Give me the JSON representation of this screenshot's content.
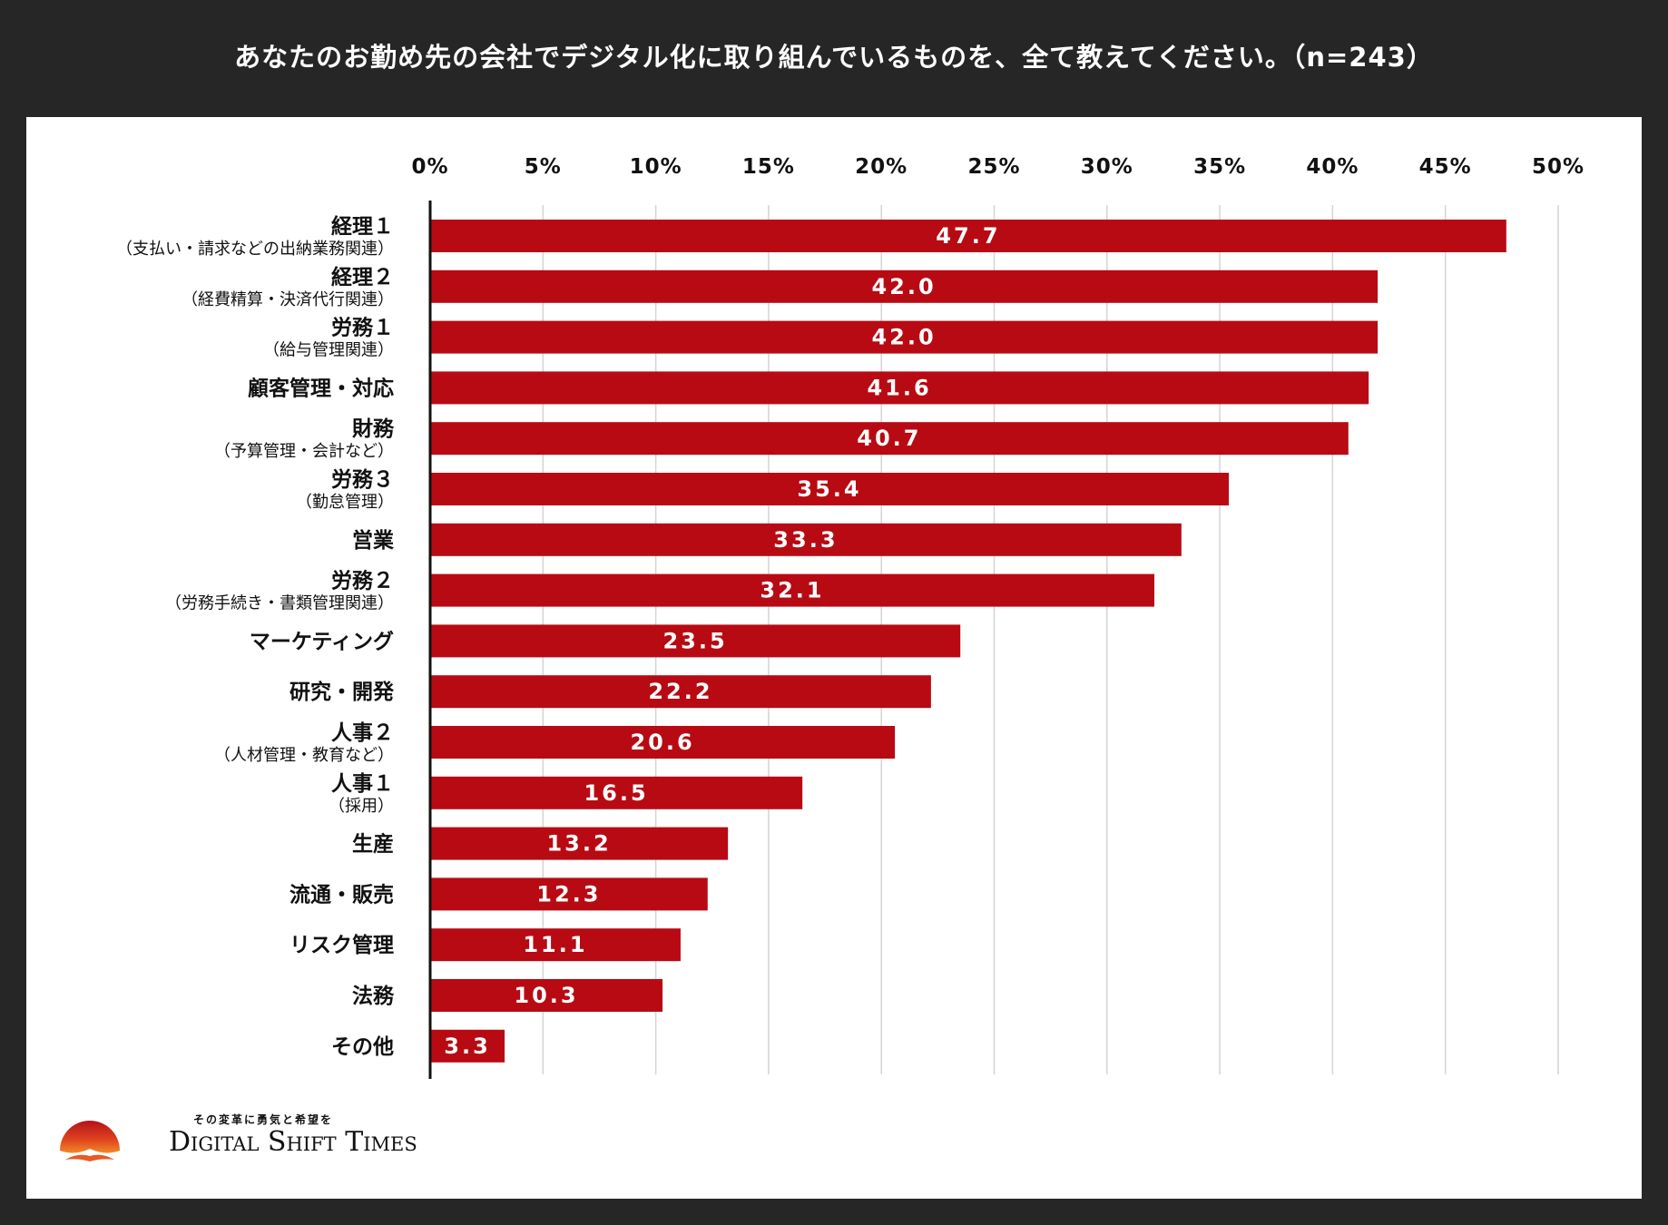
{
  "title": "あなたのお勤め先の会社でデジタル化に取り組んでいるものを、全て教えてください。（n=243）",
  "chart_data": {
    "type": "bar",
    "orientation": "horizontal",
    "xlim": [
      0,
      50
    ],
    "ticks": [
      "0%",
      "5%",
      "10%",
      "15%",
      "20%",
      "25%",
      "30%",
      "35%",
      "40%",
      "45%",
      "50%"
    ],
    "tick_values": [
      0,
      5,
      10,
      15,
      20,
      25,
      30,
      35,
      40,
      45,
      50
    ],
    "grid": true,
    "bar_color": "#b80a13",
    "categories": [
      {
        "main": "経理１",
        "sub": "（支払い・請求などの出納業務関連）"
      },
      {
        "main": "経理２",
        "sub": "（経費精算・決済代行関連）"
      },
      {
        "main": "労務１",
        "sub": "（給与管理関連）"
      },
      {
        "main": "顧客管理・対応",
        "sub": ""
      },
      {
        "main": "財務",
        "sub": "（予算管理・会計など）"
      },
      {
        "main": "労務３",
        "sub": "（勤怠管理）"
      },
      {
        "main": "営業",
        "sub": ""
      },
      {
        "main": "労務２",
        "sub": "（労務手続き・書類管理関連）"
      },
      {
        "main": "マーケティング",
        "sub": ""
      },
      {
        "main": "研究・開発",
        "sub": ""
      },
      {
        "main": "人事２",
        "sub": "（人材管理・教育など）"
      },
      {
        "main": "人事１",
        "sub": "（採用）"
      },
      {
        "main": "生産",
        "sub": ""
      },
      {
        "main": "流通・販売",
        "sub": ""
      },
      {
        "main": "リスク管理",
        "sub": ""
      },
      {
        "main": "法務",
        "sub": ""
      },
      {
        "main": "その他",
        "sub": ""
      }
    ],
    "values": [
      47.7,
      42.0,
      42.0,
      41.6,
      40.7,
      35.4,
      33.3,
      32.1,
      23.5,
      22.2,
      20.6,
      16.5,
      13.2,
      12.3,
      11.1,
      10.3,
      3.3
    ],
    "value_labels": [
      "47.7",
      "42.0",
      "42.0",
      "41.6",
      "40.7",
      "35.4",
      "33.3",
      "32.1",
      "23.5",
      "22.2",
      "20.6",
      "16.5",
      "13.2",
      "12.3",
      "11.1",
      "10.3",
      "3.3"
    ]
  },
  "logo": {
    "tagline": "その変革に勇気と希望を",
    "brand": "Digital Shift Times"
  }
}
